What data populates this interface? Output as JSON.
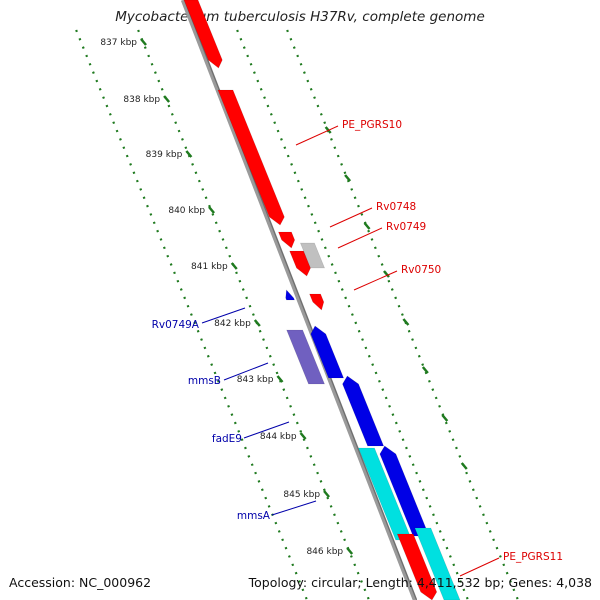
{
  "title": "Mycobacterium tuberculosis H37Rv, complete genome",
  "footer": {
    "accession": "Accession: NC_000962",
    "topology": "Topology: circular; Length: 4,411,532 bp; Genes: 4,038"
  },
  "colors": {
    "backbone": "#8c8c8c",
    "tick_green": "#1f7a1f",
    "forward_gene": "#ff0000",
    "reverse_gene": "#0000e6",
    "cyan_gene": "#00e0e0",
    "gray_gene": "#c0c0c0",
    "purple_gene": "#7060c0",
    "label_red": "#dd0000",
    "label_blue": "#0000aa"
  },
  "ruler": [
    {
      "label": "837 kbp"
    },
    {
      "label": "838 kbp"
    },
    {
      "label": "839 kbp"
    },
    {
      "label": "840 kbp"
    },
    {
      "label": "841 kbp"
    },
    {
      "label": "842 kbp"
    },
    {
      "label": "843 kbp"
    },
    {
      "label": "844 kbp"
    },
    {
      "label": "845 kbp"
    },
    {
      "label": "846 kbp"
    }
  ],
  "gene_labels": [
    {
      "text": "PE_PGRS10",
      "strand": "forward"
    },
    {
      "text": "Rv0748",
      "strand": "forward"
    },
    {
      "text": "Rv0749",
      "strand": "forward"
    },
    {
      "text": "Rv0750",
      "strand": "forward"
    },
    {
      "text": "PE_PGRS11",
      "strand": "forward"
    },
    {
      "text": "Rv0749A",
      "strand": "reverse"
    },
    {
      "text": "mmsB",
      "strand": "reverse"
    },
    {
      "text": "fadE9",
      "strand": "reverse"
    },
    {
      "text": "mmsA",
      "strand": "reverse"
    }
  ]
}
